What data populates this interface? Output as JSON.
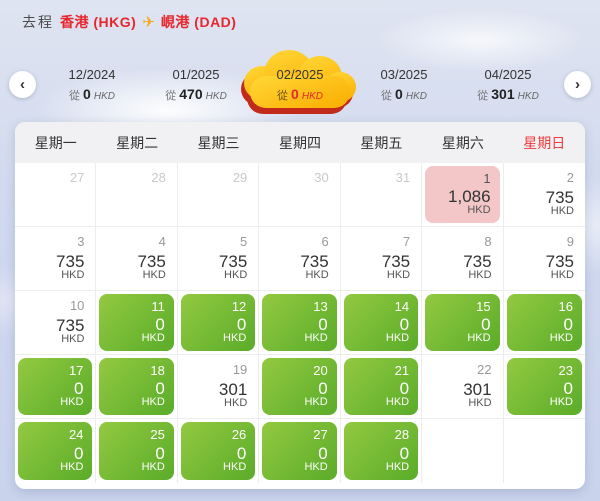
{
  "header": {
    "trip_label": "去程",
    "origin": "香港 (HKG)",
    "destination": "峴港 (DAD)",
    "plane_icon": "✈"
  },
  "month_nav": {
    "prev_icon": "‹",
    "next_icon": "›",
    "months": [
      {
        "label": "12/2024",
        "from_label": "從",
        "price": "0",
        "currency": "HKD",
        "selected": false
      },
      {
        "label": "01/2025",
        "from_label": "從",
        "price": "470",
        "currency": "HKD",
        "selected": false
      },
      {
        "label": "02/2025",
        "from_label": "從",
        "price": "0",
        "currency": "HKD",
        "selected": true
      },
      {
        "label": "03/2025",
        "from_label": "從",
        "price": "0",
        "currency": "HKD",
        "selected": false
      },
      {
        "label": "04/2025",
        "from_label": "從",
        "price": "301",
        "currency": "HKD",
        "selected": false
      }
    ]
  },
  "calendar": {
    "weekdays": [
      {
        "label": "星期一",
        "highlight": false
      },
      {
        "label": "星期二",
        "highlight": false
      },
      {
        "label": "星期三",
        "highlight": false
      },
      {
        "label": "星期四",
        "highlight": false
      },
      {
        "label": "星期五",
        "highlight": false
      },
      {
        "label": "星期六",
        "highlight": false
      },
      {
        "label": "星期日",
        "highlight": true
      }
    ],
    "cells": [
      {
        "day": "27",
        "type": "muted",
        "price": "",
        "currency": ""
      },
      {
        "day": "28",
        "type": "muted",
        "price": "",
        "currency": ""
      },
      {
        "day": "29",
        "type": "muted",
        "price": "",
        "currency": ""
      },
      {
        "day": "30",
        "type": "muted",
        "price": "",
        "currency": ""
      },
      {
        "day": "31",
        "type": "muted",
        "price": "",
        "currency": ""
      },
      {
        "day": "1",
        "type": "pink",
        "price": "1,086",
        "currency": "HKD"
      },
      {
        "day": "2",
        "type": "normal",
        "price": "735",
        "currency": "HKD"
      },
      {
        "day": "3",
        "type": "normal",
        "price": "735",
        "currency": "HKD"
      },
      {
        "day": "4",
        "type": "normal",
        "price": "735",
        "currency": "HKD"
      },
      {
        "day": "5",
        "type": "normal",
        "price": "735",
        "currency": "HKD"
      },
      {
        "day": "6",
        "type": "normal",
        "price": "735",
        "currency": "HKD"
      },
      {
        "day": "7",
        "type": "normal",
        "price": "735",
        "currency": "HKD"
      },
      {
        "day": "8",
        "type": "normal",
        "price": "735",
        "currency": "HKD"
      },
      {
        "day": "9",
        "type": "normal",
        "price": "735",
        "currency": "HKD"
      },
      {
        "day": "10",
        "type": "normal",
        "price": "735",
        "currency": "HKD"
      },
      {
        "day": "11",
        "type": "green",
        "price": "0",
        "currency": "HKD"
      },
      {
        "day": "12",
        "type": "green",
        "price": "0",
        "currency": "HKD"
      },
      {
        "day": "13",
        "type": "green",
        "price": "0",
        "currency": "HKD"
      },
      {
        "day": "14",
        "type": "green",
        "price": "0",
        "currency": "HKD"
      },
      {
        "day": "15",
        "type": "green",
        "price": "0",
        "currency": "HKD"
      },
      {
        "day": "16",
        "type": "green",
        "price": "0",
        "currency": "HKD"
      },
      {
        "day": "17",
        "type": "green",
        "price": "0",
        "currency": "HKD"
      },
      {
        "day": "18",
        "type": "green",
        "price": "0",
        "currency": "HKD"
      },
      {
        "day": "19",
        "type": "normal",
        "price": "301",
        "currency": "HKD"
      },
      {
        "day": "20",
        "type": "green",
        "price": "0",
        "currency": "HKD"
      },
      {
        "day": "21",
        "type": "green",
        "price": "0",
        "currency": "HKD"
      },
      {
        "day": "22",
        "type": "normal",
        "price": "301",
        "currency": "HKD"
      },
      {
        "day": "23",
        "type": "green",
        "price": "0",
        "currency": "HKD"
      },
      {
        "day": "24",
        "type": "green",
        "price": "0",
        "currency": "HKD"
      },
      {
        "day": "25",
        "type": "green",
        "price": "0",
        "currency": "HKD"
      },
      {
        "day": "26",
        "type": "green",
        "price": "0",
        "currency": "HKD"
      },
      {
        "day": "27",
        "type": "green",
        "price": "0",
        "currency": "HKD"
      },
      {
        "day": "28",
        "type": "green",
        "price": "0",
        "currency": "HKD"
      },
      {
        "day": "",
        "type": "empty",
        "price": "",
        "currency": ""
      },
      {
        "day": "",
        "type": "empty",
        "price": "",
        "currency": ""
      }
    ]
  },
  "colors": {
    "accent_red": "#e8262d",
    "cloud_yellow": "#ffc515",
    "cloud_shadow_red": "#c22a1c",
    "green_cell_start": "#93c941",
    "green_cell_end": "#5aac29",
    "pink_cell": "#f3c7c7",
    "sunday_red": "#ee3b3b",
    "background_blue": "#cfd8ee"
  }
}
